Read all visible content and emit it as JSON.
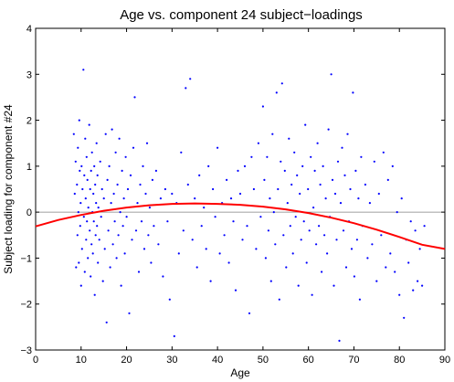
{
  "chart_data": {
    "type": "scatter",
    "title": "Age vs. component 24 subject−loadings",
    "xlabel": "Age",
    "ylabel": "Subject loading for component #24",
    "xlim": [
      0,
      90
    ],
    "ylim": [
      -3,
      4
    ],
    "xticks": [
      "0",
      "10",
      "20",
      "30",
      "40",
      "50",
      "60",
      "70",
      "80",
      "90"
    ],
    "yticks": [
      "−3",
      "−2",
      "−1",
      "0",
      "1",
      "2",
      "3",
      "4"
    ],
    "grid": false,
    "zero_line": true,
    "colors": {
      "points": "#0000ff",
      "fit": "#ff0000",
      "zero_line": "#808080"
    },
    "fit_curve": {
      "type": "quadratic",
      "x": [
        0,
        5,
        10,
        15,
        20,
        25,
        30,
        35,
        40,
        45,
        50,
        55,
        60,
        65,
        70,
        75,
        80,
        85,
        90
      ],
      "y": [
        -0.31,
        -0.17,
        -0.06,
        0.03,
        0.1,
        0.15,
        0.18,
        0.19,
        0.18,
        0.16,
        0.12,
        0.06,
        -0.02,
        -0.12,
        -0.24,
        -0.38,
        -0.54,
        -0.71,
        -0.8
      ]
    },
    "points": [
      [
        8.4,
        1.7
      ],
      [
        8.6,
        0.4
      ],
      [
        8.8,
        1.1
      ],
      [
        8.9,
        -1.2
      ],
      [
        9.1,
        0.6
      ],
      [
        9.2,
        -0.5
      ],
      [
        9.3,
        1.4
      ],
      [
        9.4,
        0.0
      ],
      [
        9.5,
        -1.1
      ],
      [
        9.6,
        2.0
      ],
      [
        9.7,
        0.9
      ],
      [
        9.8,
        -0.3
      ],
      [
        9.9,
        0.2
      ],
      [
        10.0,
        -1.6
      ],
      [
        10.1,
        1.0
      ],
      [
        10.2,
        -0.8
      ],
      [
        10.3,
        0.5
      ],
      [
        10.5,
        3.1
      ],
      [
        10.6,
        -0.1
      ],
      [
        10.7,
        0.8
      ],
      [
        10.8,
        -1.3
      ],
      [
        10.9,
        1.6
      ],
      [
        11.0,
        0.3
      ],
      [
        11.1,
        -0.6
      ],
      [
        11.2,
        1.2
      ],
      [
        11.3,
        -0.2
      ],
      [
        11.4,
        0.7
      ],
      [
        11.5,
        -1.0
      ],
      [
        11.6,
        0.1
      ],
      [
        11.8,
        1.9
      ],
      [
        11.9,
        -0.4
      ],
      [
        12.0,
        0.5
      ],
      [
        12.1,
        -1.4
      ],
      [
        12.2,
        0.9
      ],
      [
        12.3,
        -0.7
      ],
      [
        12.4,
        1.3
      ],
      [
        12.5,
        0.0
      ],
      [
        12.6,
        -0.9
      ],
      [
        12.7,
        0.4
      ],
      [
        12.8,
        -0.2
      ],
      [
        12.9,
        1.0
      ],
      [
        13.0,
        -1.8
      ],
      [
        13.1,
        0.6
      ],
      [
        13.2,
        -0.5
      ],
      [
        13.3,
        0.2
      ],
      [
        13.4,
        1.5
      ],
      [
        13.5,
        -0.3
      ],
      [
        13.6,
        0.8
      ],
      [
        13.7,
        -1.1
      ],
      [
        13.8,
        0.1
      ],
      [
        14.0,
        -0.6
      ],
      [
        14.2,
        1.1
      ],
      [
        14.4,
        -0.1
      ],
      [
        14.6,
        0.5
      ],
      [
        14.8,
        -1.5
      ],
      [
        15.0,
        0.3
      ],
      [
        15.2,
        -0.8
      ],
      [
        15.4,
        1.7
      ],
      [
        15.6,
        -2.4
      ],
      [
        15.8,
        0.7
      ],
      [
        16.0,
        -0.4
      ],
      [
        16.2,
        1.0
      ],
      [
        16.4,
        -1.2
      ],
      [
        16.6,
        0.2
      ],
      [
        16.8,
        1.8
      ],
      [
        17.0,
        -0.7
      ],
      [
        17.2,
        0.4
      ],
      [
        17.4,
        -0.2
      ],
      [
        17.6,
        1.3
      ],
      [
        17.8,
        -1.0
      ],
      [
        18.0,
        0.6
      ],
      [
        18.2,
        -0.5
      ],
      [
        18.4,
        1.6
      ],
      [
        18.6,
        0.0
      ],
      [
        18.8,
        -1.6
      ],
      [
        19.0,
        0.9
      ],
      [
        19.2,
        -0.3
      ],
      [
        19.4,
        0.3
      ],
      [
        19.6,
        -0.9
      ],
      [
        19.8,
        1.2
      ],
      [
        20.0,
        -0.1
      ],
      [
        20.3,
        0.5
      ],
      [
        20.6,
        -2.2
      ],
      [
        20.9,
        0.8
      ],
      [
        21.2,
        -0.6
      ],
      [
        21.5,
        1.4
      ],
      [
        21.8,
        2.5
      ],
      [
        22.1,
        -0.4
      ],
      [
        22.4,
        0.2
      ],
      [
        22.7,
        -1.3
      ],
      [
        23.0,
        0.6
      ],
      [
        23.3,
        -0.2
      ],
      [
        23.6,
        1.0
      ],
      [
        23.9,
        -0.8
      ],
      [
        24.2,
        0.4
      ],
      [
        24.5,
        1.5
      ],
      [
        24.8,
        -0.5
      ],
      [
        25.1,
        0.1
      ],
      [
        25.4,
        -1.1
      ],
      [
        25.7,
        0.7
      ],
      [
        26.0,
        -0.3
      ],
      [
        26.5,
        0.9
      ],
      [
        27.0,
        -0.7
      ],
      [
        27.5,
        0.3
      ],
      [
        28.0,
        -1.4
      ],
      [
        28.5,
        0.5
      ],
      [
        29.0,
        -0.2
      ],
      [
        29.5,
        -1.9
      ],
      [
        30.0,
        0.4
      ],
      [
        30.5,
        -2.7
      ],
      [
        31.0,
        0.2
      ],
      [
        31.5,
        -0.9
      ],
      [
        32.0,
        1.3
      ],
      [
        32.5,
        -0.4
      ],
      [
        33.0,
        2.7
      ],
      [
        33.5,
        0.6
      ],
      [
        34.0,
        2.9
      ],
      [
        34.5,
        -0.6
      ],
      [
        35.0,
        0.3
      ],
      [
        35.5,
        -1.2
      ],
      [
        36.0,
        0.8
      ],
      [
        36.5,
        -0.3
      ],
      [
        37.0,
        0.1
      ],
      [
        37.5,
        -0.8
      ],
      [
        38.0,
        1.0
      ],
      [
        38.5,
        -1.5
      ],
      [
        39.0,
        0.5
      ],
      [
        39.5,
        -0.1
      ],
      [
        40.0,
        1.4
      ],
      [
        40.5,
        -0.9
      ],
      [
        41.0,
        0.2
      ],
      [
        41.5,
        -0.5
      ],
      [
        42.0,
        0.7
      ],
      [
        42.5,
        -1.1
      ],
      [
        43.0,
        0.3
      ],
      [
        43.5,
        -0.2
      ],
      [
        44.0,
        -1.7
      ],
      [
        44.5,
        0.9
      ],
      [
        45.0,
        0.4
      ],
      [
        45.5,
        -0.6
      ],
      [
        46.0,
        1.0
      ],
      [
        46.5,
        -0.3
      ],
      [
        47.0,
        -2.2
      ],
      [
        47.5,
        1.2
      ],
      [
        48.0,
        0.5
      ],
      [
        48.5,
        -0.8
      ],
      [
        49.0,
        1.5
      ],
      [
        49.5,
        -0.1
      ],
      [
        50.0,
        2.3
      ],
      [
        50.3,
        0.7
      ],
      [
        50.6,
        -1.0
      ],
      [
        50.9,
        1.2
      ],
      [
        51.2,
        -0.4
      ],
      [
        51.5,
        0.3
      ],
      [
        51.8,
        -1.5
      ],
      [
        52.1,
        1.7
      ],
      [
        52.4,
        0.0
      ],
      [
        52.7,
        -0.7
      ],
      [
        53.0,
        2.6
      ],
      [
        53.3,
        0.5
      ],
      [
        53.6,
        -1.9
      ],
      [
        53.9,
        1.1
      ],
      [
        54.2,
        2.8
      ],
      [
        54.5,
        -0.5
      ],
      [
        54.8,
        0.9
      ],
      [
        55.1,
        -1.2
      ],
      [
        55.4,
        0.2
      ],
      [
        55.7,
        1.6
      ],
      [
        56.0,
        -0.3
      ],
      [
        56.3,
        0.6
      ],
      [
        56.6,
        -0.9
      ],
      [
        56.9,
        1.3
      ],
      [
        57.2,
        -0.1
      ],
      [
        57.5,
        0.8
      ],
      [
        57.8,
        -1.6
      ],
      [
        58.1,
        0.4
      ],
      [
        58.4,
        -0.6
      ],
      [
        58.7,
        1.0
      ],
      [
        59.0,
        -0.2
      ],
      [
        59.3,
        1.9
      ],
      [
        59.6,
        -1.1
      ],
      [
        59.9,
        0.5
      ],
      [
        60.2,
        -0.4
      ],
      [
        60.5,
        1.2
      ],
      [
        60.8,
        -1.8
      ],
      [
        61.1,
        0.1
      ],
      [
        61.4,
        0.9
      ],
      [
        61.7,
        -0.7
      ],
      [
        62.0,
        1.5
      ],
      [
        62.3,
        -0.3
      ],
      [
        62.6,
        0.6
      ],
      [
        62.9,
        -1.3
      ],
      [
        63.2,
        1.0
      ],
      [
        63.5,
        -0.5
      ],
      [
        63.8,
        0.3
      ],
      [
        64.1,
        -0.9
      ],
      [
        64.4,
        1.8
      ],
      [
        64.7,
        -0.1
      ],
      [
        65.0,
        3.0
      ],
      [
        65.3,
        0.7
      ],
      [
        65.6,
        -1.6
      ],
      [
        65.9,
        0.4
      ],
      [
        66.2,
        -0.6
      ],
      [
        66.5,
        1.1
      ],
      [
        66.8,
        -2.8
      ],
      [
        67.1,
        0.2
      ],
      [
        67.4,
        1.4
      ],
      [
        67.7,
        -0.4
      ],
      [
        68.0,
        0.8
      ],
      [
        68.3,
        -1.2
      ],
      [
        68.6,
        1.7
      ],
      [
        68.9,
        -0.2
      ],
      [
        69.2,
        0.5
      ],
      [
        69.5,
        -0.8
      ],
      [
        69.8,
        2.6
      ],
      [
        70.1,
        -1.4
      ],
      [
        70.4,
        0.9
      ],
      [
        70.7,
        -0.6
      ],
      [
        71.0,
        0.3
      ],
      [
        71.3,
        -1.9
      ],
      [
        71.6,
        1.2
      ],
      [
        71.9,
        -0.3
      ],
      [
        72.5,
        0.6
      ],
      [
        73.0,
        -1.0
      ],
      [
        73.5,
        0.2
      ],
      [
        74.0,
        -0.7
      ],
      [
        74.5,
        1.1
      ],
      [
        75.0,
        -1.5
      ],
      [
        75.5,
        0.4
      ],
      [
        76.0,
        -0.5
      ],
      [
        76.5,
        1.3
      ],
      [
        77.0,
        -1.2
      ],
      [
        77.5,
        0.7
      ],
      [
        78.0,
        -0.9
      ],
      [
        78.5,
        1.0
      ],
      [
        79.0,
        -1.3
      ],
      [
        79.5,
        0.0
      ],
      [
        80.0,
        -1.8
      ],
      [
        80.5,
        0.3
      ],
      [
        81.0,
        -2.3
      ],
      [
        81.5,
        -0.6
      ],
      [
        82.0,
        -1.1
      ],
      [
        82.5,
        -0.2
      ],
      [
        83.0,
        -1.7
      ],
      [
        83.5,
        -0.4
      ],
      [
        84.0,
        -1.5
      ],
      [
        84.5,
        -0.8
      ],
      [
        85.0,
        -1.6
      ],
      [
        85.5,
        -0.3
      ]
    ]
  }
}
